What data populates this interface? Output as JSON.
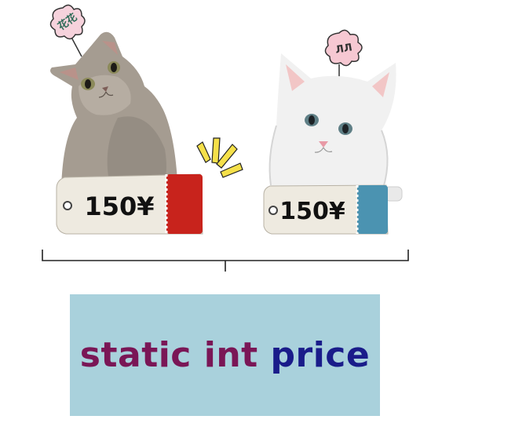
{
  "cats": [
    {
      "name_tag": "花花",
      "price_tag": "150¥",
      "tag_color": "#c8231c",
      "fur_color": "#a59c91"
    },
    {
      "name_tag": "ЛЛ",
      "price_tag": "150¥",
      "tag_color": "#4b93b1",
      "fur_color": "#f1f1f1"
    }
  ],
  "code": {
    "static": "static",
    "type": "int",
    "name": "price"
  },
  "colors": {
    "code_bg": "#a9d1dc",
    "keyword": "#7a1656",
    "identifier": "#1a1c8a",
    "spark": "#f5e04a"
  }
}
